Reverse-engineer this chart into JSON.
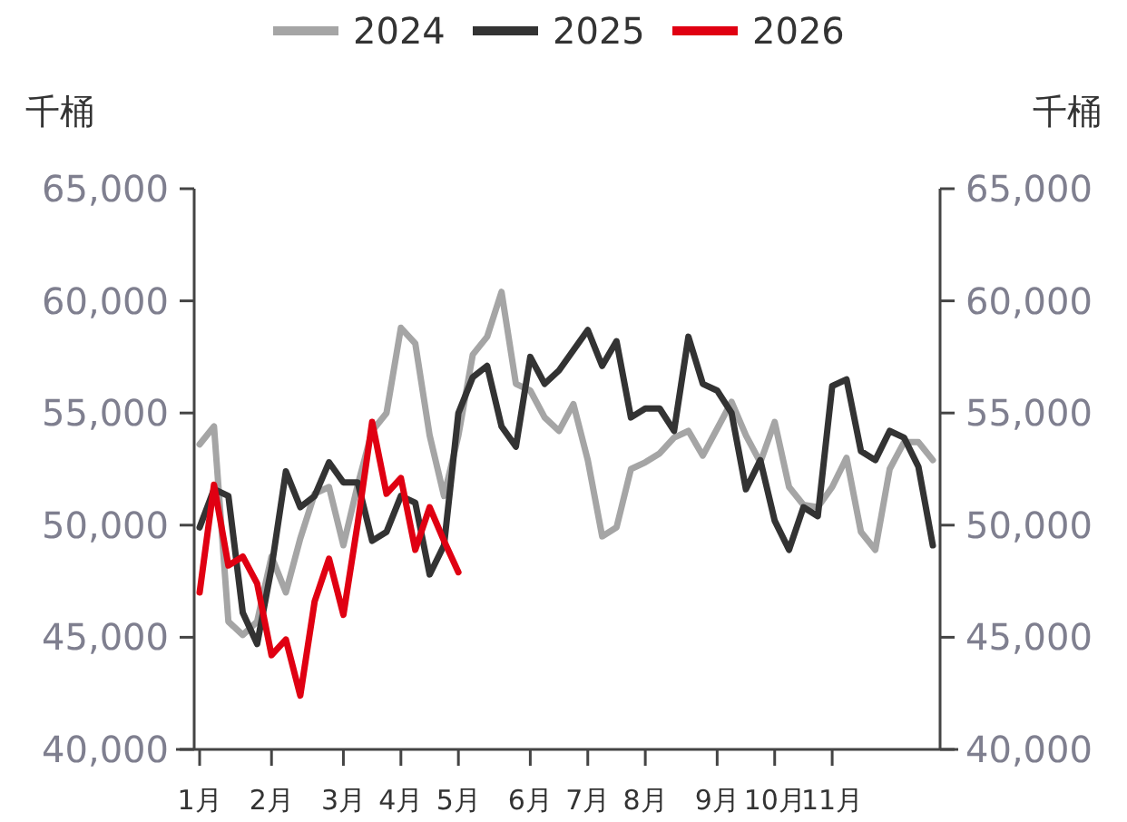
{
  "chart_data": {
    "type": "line",
    "ylabel": "千桶",
    "y2label": "千桶",
    "legend": "top",
    "grid": false,
    "line_style": "solid",
    "categories": [
      "1月",
      null,
      null,
      null,
      null,
      "2月",
      null,
      null,
      null,
      null,
      "3月",
      null,
      null,
      null,
      "4月",
      null,
      null,
      null,
      "5月",
      null,
      null,
      null,
      null,
      "6月",
      null,
      null,
      null,
      "7月",
      null,
      null,
      null,
      "8月",
      null,
      null,
      null,
      null,
      "9月",
      null,
      null,
      null,
      "10月",
      null,
      null,
      null,
      "11月",
      null,
      null,
      null,
      null,
      null,
      null,
      null
    ],
    "ylim": [
      40000,
      65000
    ],
    "yticks": [
      {
        "value": 40000,
        "label": "40,000"
      },
      {
        "value": 45000,
        "label": "45,000"
      },
      {
        "value": 50000,
        "label": "50,000"
      },
      {
        "value": 55000,
        "label": "55,000"
      },
      {
        "value": 60000,
        "label": "60,000"
      },
      {
        "value": 65000,
        "label": "65,000"
      }
    ],
    "y2lim": [
      40000,
      65000
    ],
    "y2ticks": [
      {
        "value": 40000,
        "label": "40,000"
      },
      {
        "value": 45000,
        "label": "45,000"
      },
      {
        "value": 50000,
        "label": "50,000"
      },
      {
        "value": 55000,
        "label": "55,000"
      },
      {
        "value": 60000,
        "label": "60,000"
      },
      {
        "value": 65000,
        "label": "65,000"
      }
    ],
    "series": [
      {
        "name": "2024",
        "color": "#a5a5a5",
        "values": [
          53600,
          54400,
          45700,
          45100,
          45700,
          48600,
          47000,
          49400,
          51400,
          51700,
          49100,
          51800,
          54200,
          55000,
          58800,
          58100,
          54000,
          51300,
          54000,
          57600,
          58400,
          60400,
          56300,
          56000,
          54800,
          54200,
          55400,
          52900,
          49500,
          49900,
          52500,
          52800,
          53200,
          53900,
          54200,
          53100,
          54300,
          55500,
          54000,
          52800,
          54600,
          51700,
          50900,
          50800,
          51700,
          53000,
          49700,
          48900,
          52500,
          53700,
          53700,
          52900
        ]
      },
      {
        "name": "2025",
        "color": "#333333",
        "values": [
          49900,
          51600,
          51300,
          46100,
          44700,
          48100,
          52400,
          50800,
          51300,
          52800,
          51900,
          51900,
          49300,
          49700,
          51300,
          51000,
          47800,
          49100,
          55000,
          56600,
          57100,
          54400,
          53500,
          57500,
          56300,
          56900,
          57800,
          58700,
          57100,
          58200,
          54800,
          55200,
          55200,
          54200,
          58400,
          56300,
          56000,
          55000,
          51600,
          52900,
          50200,
          48900,
          50800,
          50400,
          56200,
          56500,
          53300,
          52900,
          54200,
          53900,
          52600,
          49100
        ]
      },
      {
        "name": "2026",
        "color": "#e00012",
        "values": [
          47000,
          51800,
          48200,
          48600,
          47400,
          44200,
          44900,
          42400,
          46600,
          48500,
          46000,
          50100,
          54600,
          51400,
          52100,
          48900,
          50800,
          49300,
          47900,
          null,
          null,
          null,
          null,
          null,
          null,
          null,
          null,
          null,
          null,
          null,
          null,
          null,
          null,
          null,
          null,
          null,
          null,
          null,
          null,
          null,
          null,
          null,
          null,
          null,
          null,
          null,
          null,
          null,
          null,
          null,
          null,
          null
        ]
      }
    ]
  }
}
